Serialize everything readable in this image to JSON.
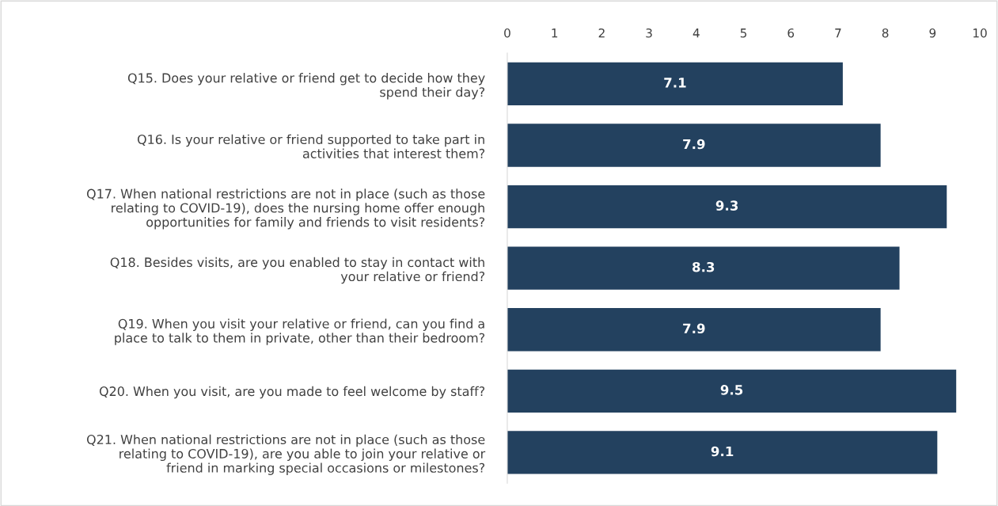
{
  "chart_data": {
    "type": "bar",
    "orientation": "horizontal",
    "categories": [
      "Q15. Does your relative or friend get to decide how they\nspend their day?",
      "Q16. Is your relative or friend supported to take part in\nactivities that interest them?",
      "Q17. When national restrictions are not in place (such as those\nrelating to COVID-19), does the nursing home offer enough\nopportunities for family and friends to visit residents?",
      "Q18. Besides visits, are you enabled to stay in contact with\nyour relative or friend?",
      "Q19. When you visit your relative or friend, can you find a\nplace to talk to them in private, other than their bedroom?",
      "Q20. When you visit, are you made to feel welcome by staff?",
      "Q21. When national restrictions are not in place (such as those\nrelating to COVID-19), are you able to join your relative or\nfriend in marking special occasions or milestones?"
    ],
    "values": [
      7.1,
      7.9,
      9.3,
      8.3,
      7.9,
      9.5,
      9.1
    ],
    "color": "#23415f",
    "xlim": [
      0,
      10
    ],
    "xticks": [
      0,
      1,
      2,
      3,
      4,
      5,
      6,
      7,
      8,
      9,
      10
    ],
    "data_labels": true,
    "grid": false,
    "legend": false
  }
}
